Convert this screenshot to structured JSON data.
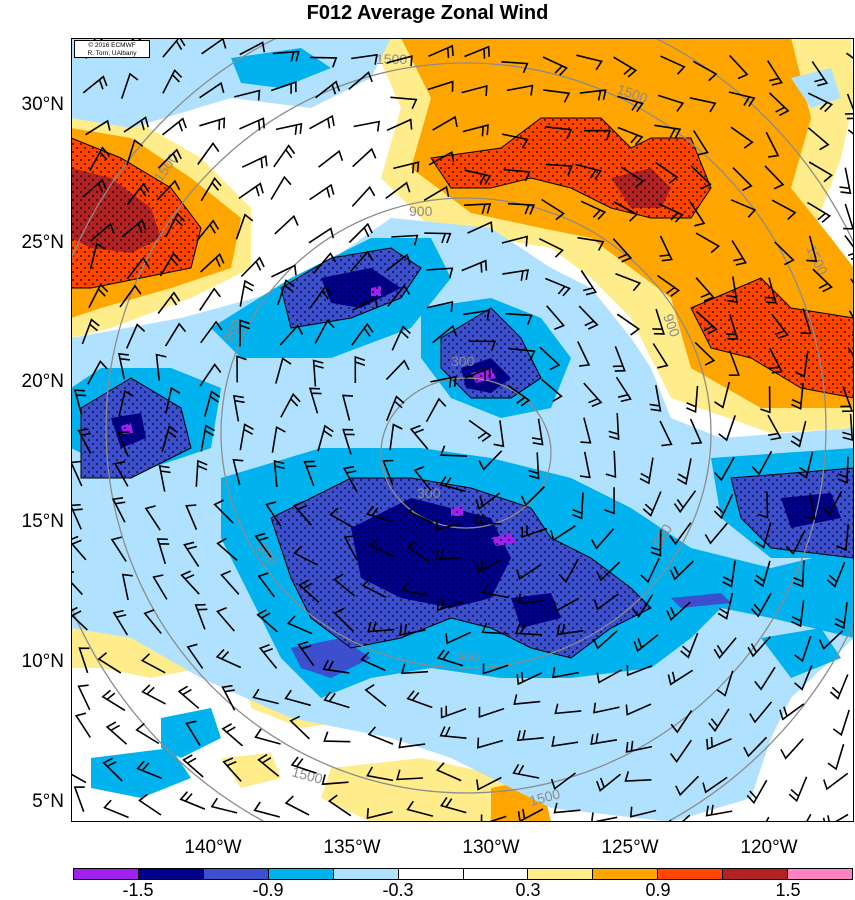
{
  "title": "F012 Average Zonal Wind",
  "credit": {
    "line1": "© 2016 ECMWF",
    "line2": "R. Torn, UAlbany"
  },
  "latitude_labels": [
    "30°N",
    "25°N",
    "20°N",
    "15°N",
    "10°N",
    "5°N"
  ],
  "longitude_labels": [
    "140°W",
    "135°W",
    "130°W",
    "125°W",
    "120°W"
  ],
  "colorbar": {
    "labels": [
      "-1.5",
      "-0.9",
      "-0.3",
      "0.3",
      "0.9",
      "1.5"
    ],
    "colors": [
      "#a020f0",
      "#00008b",
      "#3b4fcf",
      "#00b2ee",
      "#b0e2ff",
      "#ffffff",
      "#ffffff",
      "#ffec8b",
      "#ffa500",
      "#ff4500",
      "#b22222",
      "#ff82c1"
    ]
  },
  "contour_labels": [
    "1500",
    "1500",
    "1500",
    "1500",
    "1500",
    "1500",
    "900",
    "900",
    "900",
    "900",
    "900",
    "900",
    "300",
    "300"
  ],
  "map": {
    "projection": "lat-lon",
    "lat_range": [
      4.3,
      32.8
    ],
    "lon_range": [
      -145.0,
      -116.6
    ],
    "contour_field": "distance from storm center (km)",
    "shading_field": "average zonal wind (m/s)",
    "stippling": "significant regions"
  }
}
